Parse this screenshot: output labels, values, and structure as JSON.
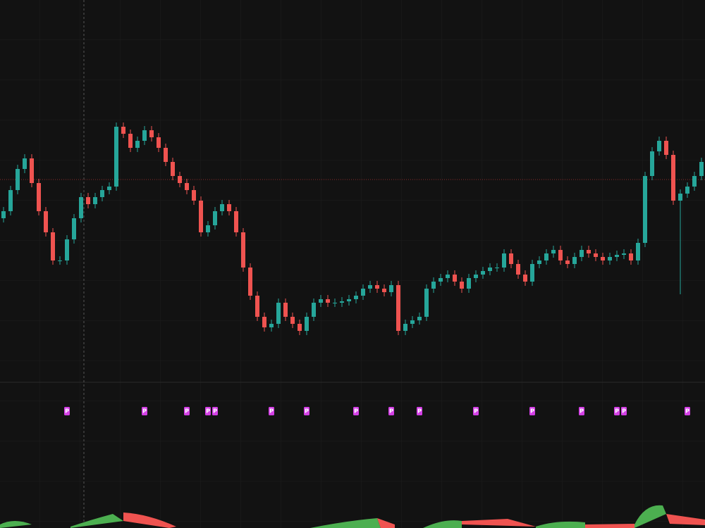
{
  "chart_data": {
    "type": "candlestick",
    "ylim": [
      210,
      750
    ],
    "up_color": "#26a69a",
    "down_color": "#ef5350",
    "price_line": 495,
    "open": [
      440,
      450,
      480,
      510,
      525,
      490,
      450,
      420,
      380,
      380,
      410,
      440,
      470,
      460,
      470,
      480,
      485,
      570,
      560,
      540,
      550,
      565,
      555,
      540,
      520,
      500,
      490,
      480,
      465,
      420,
      430,
      450,
      460,
      450,
      420,
      370,
      330,
      300,
      285,
      290,
      320,
      300,
      290,
      280,
      300,
      320,
      325,
      320,
      320,
      322,
      325,
      330,
      340,
      345,
      340,
      335,
      345,
      280,
      290,
      295,
      300,
      340,
      350,
      355,
      360,
      350,
      340,
      355,
      360,
      365,
      370,
      370,
      390,
      375,
      360,
      350,
      375,
      380,
      390,
      395,
      380,
      375,
      385,
      395,
      390,
      385,
      380,
      385,
      388,
      390,
      380,
      405,
      500,
      535,
      550,
      530,
      465,
      475,
      485,
      500
    ],
    "high": [
      456,
      486,
      516,
      531,
      531,
      496,
      456,
      426,
      386,
      416,
      446,
      476,
      476,
      476,
      486,
      491,
      576,
      576,
      566,
      556,
      571,
      571,
      561,
      546,
      526,
      506,
      496,
      486,
      471,
      436,
      456,
      466,
      466,
      456,
      426,
      376,
      336,
      306,
      296,
      326,
      326,
      306,
      296,
      306,
      326,
      331,
      331,
      326,
      328,
      331,
      336,
      346,
      351,
      351,
      346,
      351,
      351,
      296,
      301,
      306,
      346,
      356,
      361,
      366,
      366,
      356,
      361,
      366,
      371,
      376,
      376,
      396,
      396,
      381,
      366,
      381,
      386,
      396,
      401,
      401,
      386,
      391,
      401,
      401,
      396,
      391,
      391,
      394,
      396,
      396,
      411,
      506,
      541,
      556,
      556,
      536,
      481,
      491,
      506,
      526
    ],
    "low": [
      434,
      444,
      474,
      504,
      484,
      444,
      414,
      374,
      374,
      374,
      404,
      434,
      454,
      454,
      464,
      474,
      479,
      554,
      534,
      534,
      544,
      549,
      534,
      514,
      494,
      484,
      474,
      459,
      414,
      414,
      424,
      444,
      444,
      414,
      364,
      324,
      294,
      279,
      279,
      284,
      294,
      284,
      274,
      274,
      294,
      314,
      314,
      314,
      314,
      316,
      319,
      324,
      334,
      334,
      329,
      329,
      274,
      274,
      284,
      289,
      294,
      334,
      344,
      349,
      344,
      334,
      334,
      349,
      354,
      359,
      364,
      364,
      369,
      354,
      344,
      344,
      369,
      374,
      384,
      374,
      369,
      369,
      379,
      384,
      379,
      374,
      374,
      379,
      382,
      374,
      374,
      399,
      494,
      529,
      524,
      459,
      332,
      469,
      479,
      494
    ],
    "close": [
      450,
      480,
      510,
      525,
      490,
      450,
      420,
      380,
      380,
      410,
      440,
      470,
      460,
      470,
      480,
      485,
      570,
      560,
      540,
      550,
      565,
      555,
      540,
      520,
      500,
      490,
      480,
      465,
      420,
      430,
      450,
      460,
      450,
      420,
      370,
      330,
      300,
      285,
      290,
      320,
      300,
      290,
      280,
      300,
      320,
      325,
      320,
      320,
      322,
      325,
      330,
      340,
      345,
      340,
      335,
      345,
      280,
      290,
      295,
      300,
      340,
      350,
      355,
      360,
      350,
      340,
      355,
      360,
      365,
      370,
      370,
      390,
      375,
      360,
      350,
      375,
      380,
      390,
      395,
      380,
      375,
      385,
      395,
      390,
      385,
      380,
      385,
      388,
      390,
      380,
      405,
      500,
      535,
      550,
      530,
      465,
      475,
      485,
      500,
      520
    ],
    "markers": [
      {
        "label": "P",
        "index": 9
      },
      {
        "label": "P",
        "index": 20
      },
      {
        "label": "P",
        "index": 26
      },
      {
        "label": "P",
        "index": 29
      },
      {
        "label": "P",
        "index": 30
      },
      {
        "label": "P",
        "index": 38
      },
      {
        "label": "P",
        "index": 43
      },
      {
        "label": "P",
        "index": 50
      },
      {
        "label": "P",
        "index": 55
      },
      {
        "label": "P",
        "index": 59
      },
      {
        "label": "P",
        "index": 67
      },
      {
        "label": "P",
        "index": 75
      },
      {
        "label": "P",
        "index": 82
      },
      {
        "label": "P",
        "index": 87
      },
      {
        "label": "P",
        "index": 88
      },
      {
        "label": "P",
        "index": 97
      }
    ],
    "marker_color": "#d43fe6"
  }
}
